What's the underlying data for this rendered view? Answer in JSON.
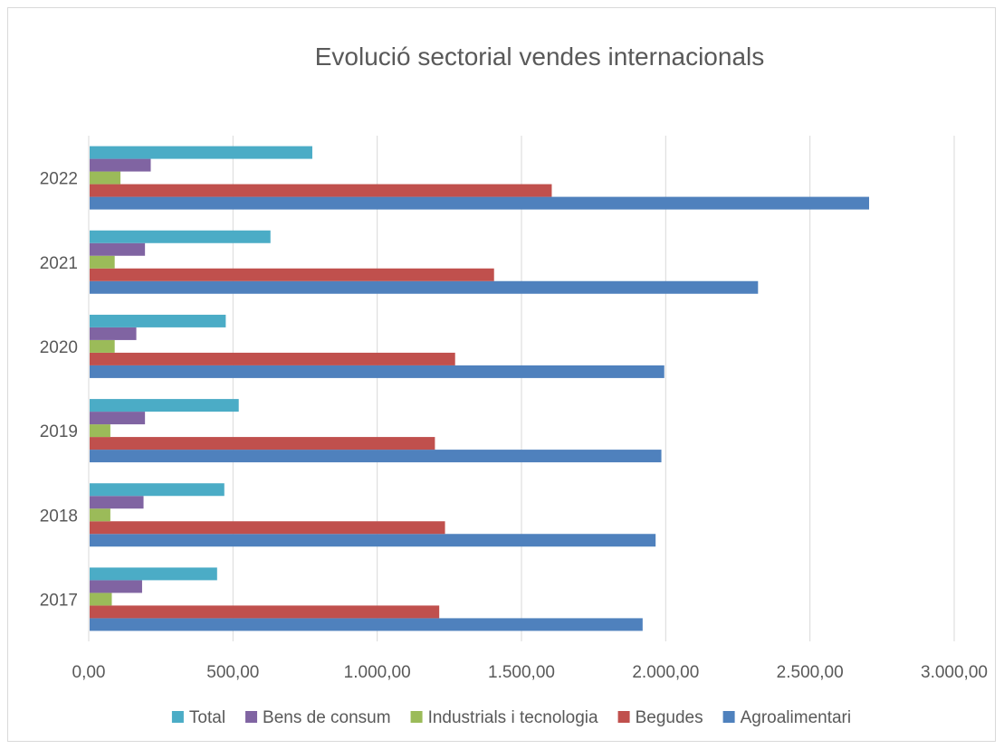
{
  "chart_data": {
    "type": "bar",
    "orientation": "horizontal",
    "title": "Evolució sectorial vendes internacionals",
    "categories": [
      "2017",
      "2018",
      "2019",
      "2020",
      "2021",
      "2022"
    ],
    "series": [
      {
        "name": "Agroalimentari",
        "color": "#4f81bd",
        "values": [
          1920,
          1965,
          1985,
          1995,
          2320,
          2705
        ]
      },
      {
        "name": "Begudes",
        "color": "#c0504d",
        "values": [
          1215,
          1235,
          1200,
          1270,
          1405,
          1605
        ]
      },
      {
        "name": "Industrials i tecnologia",
        "color": "#9bbb59",
        "values": [
          80,
          75,
          75,
          90,
          90,
          110
        ]
      },
      {
        "name": "Bens de consum",
        "color": "#8064a2",
        "values": [
          185,
          190,
          195,
          165,
          195,
          215
        ]
      },
      {
        "name": "Total",
        "color": "#4bacc6",
        "values": [
          445,
          470,
          520,
          475,
          630,
          775
        ]
      }
    ],
    "xlim": [
      0,
      3000
    ],
    "x_ticks": [
      {
        "value": 0,
        "label": "0,00"
      },
      {
        "value": 500,
        "label": "500,00"
      },
      {
        "value": 1000,
        "label": "1.000,00"
      },
      {
        "value": 1500,
        "label": "1.500,00"
      },
      {
        "value": 2000,
        "label": "2.000,00"
      },
      {
        "value": 2500,
        "label": "2.500,00"
      },
      {
        "value": 3000,
        "label": "3.000,00"
      }
    ],
    "legend_order": [
      "Total",
      "Bens de consum",
      "Industrials i tecnologia",
      "Begudes",
      "Agroalimentari"
    ],
    "legend_position": "bottom",
    "grid": true
  }
}
